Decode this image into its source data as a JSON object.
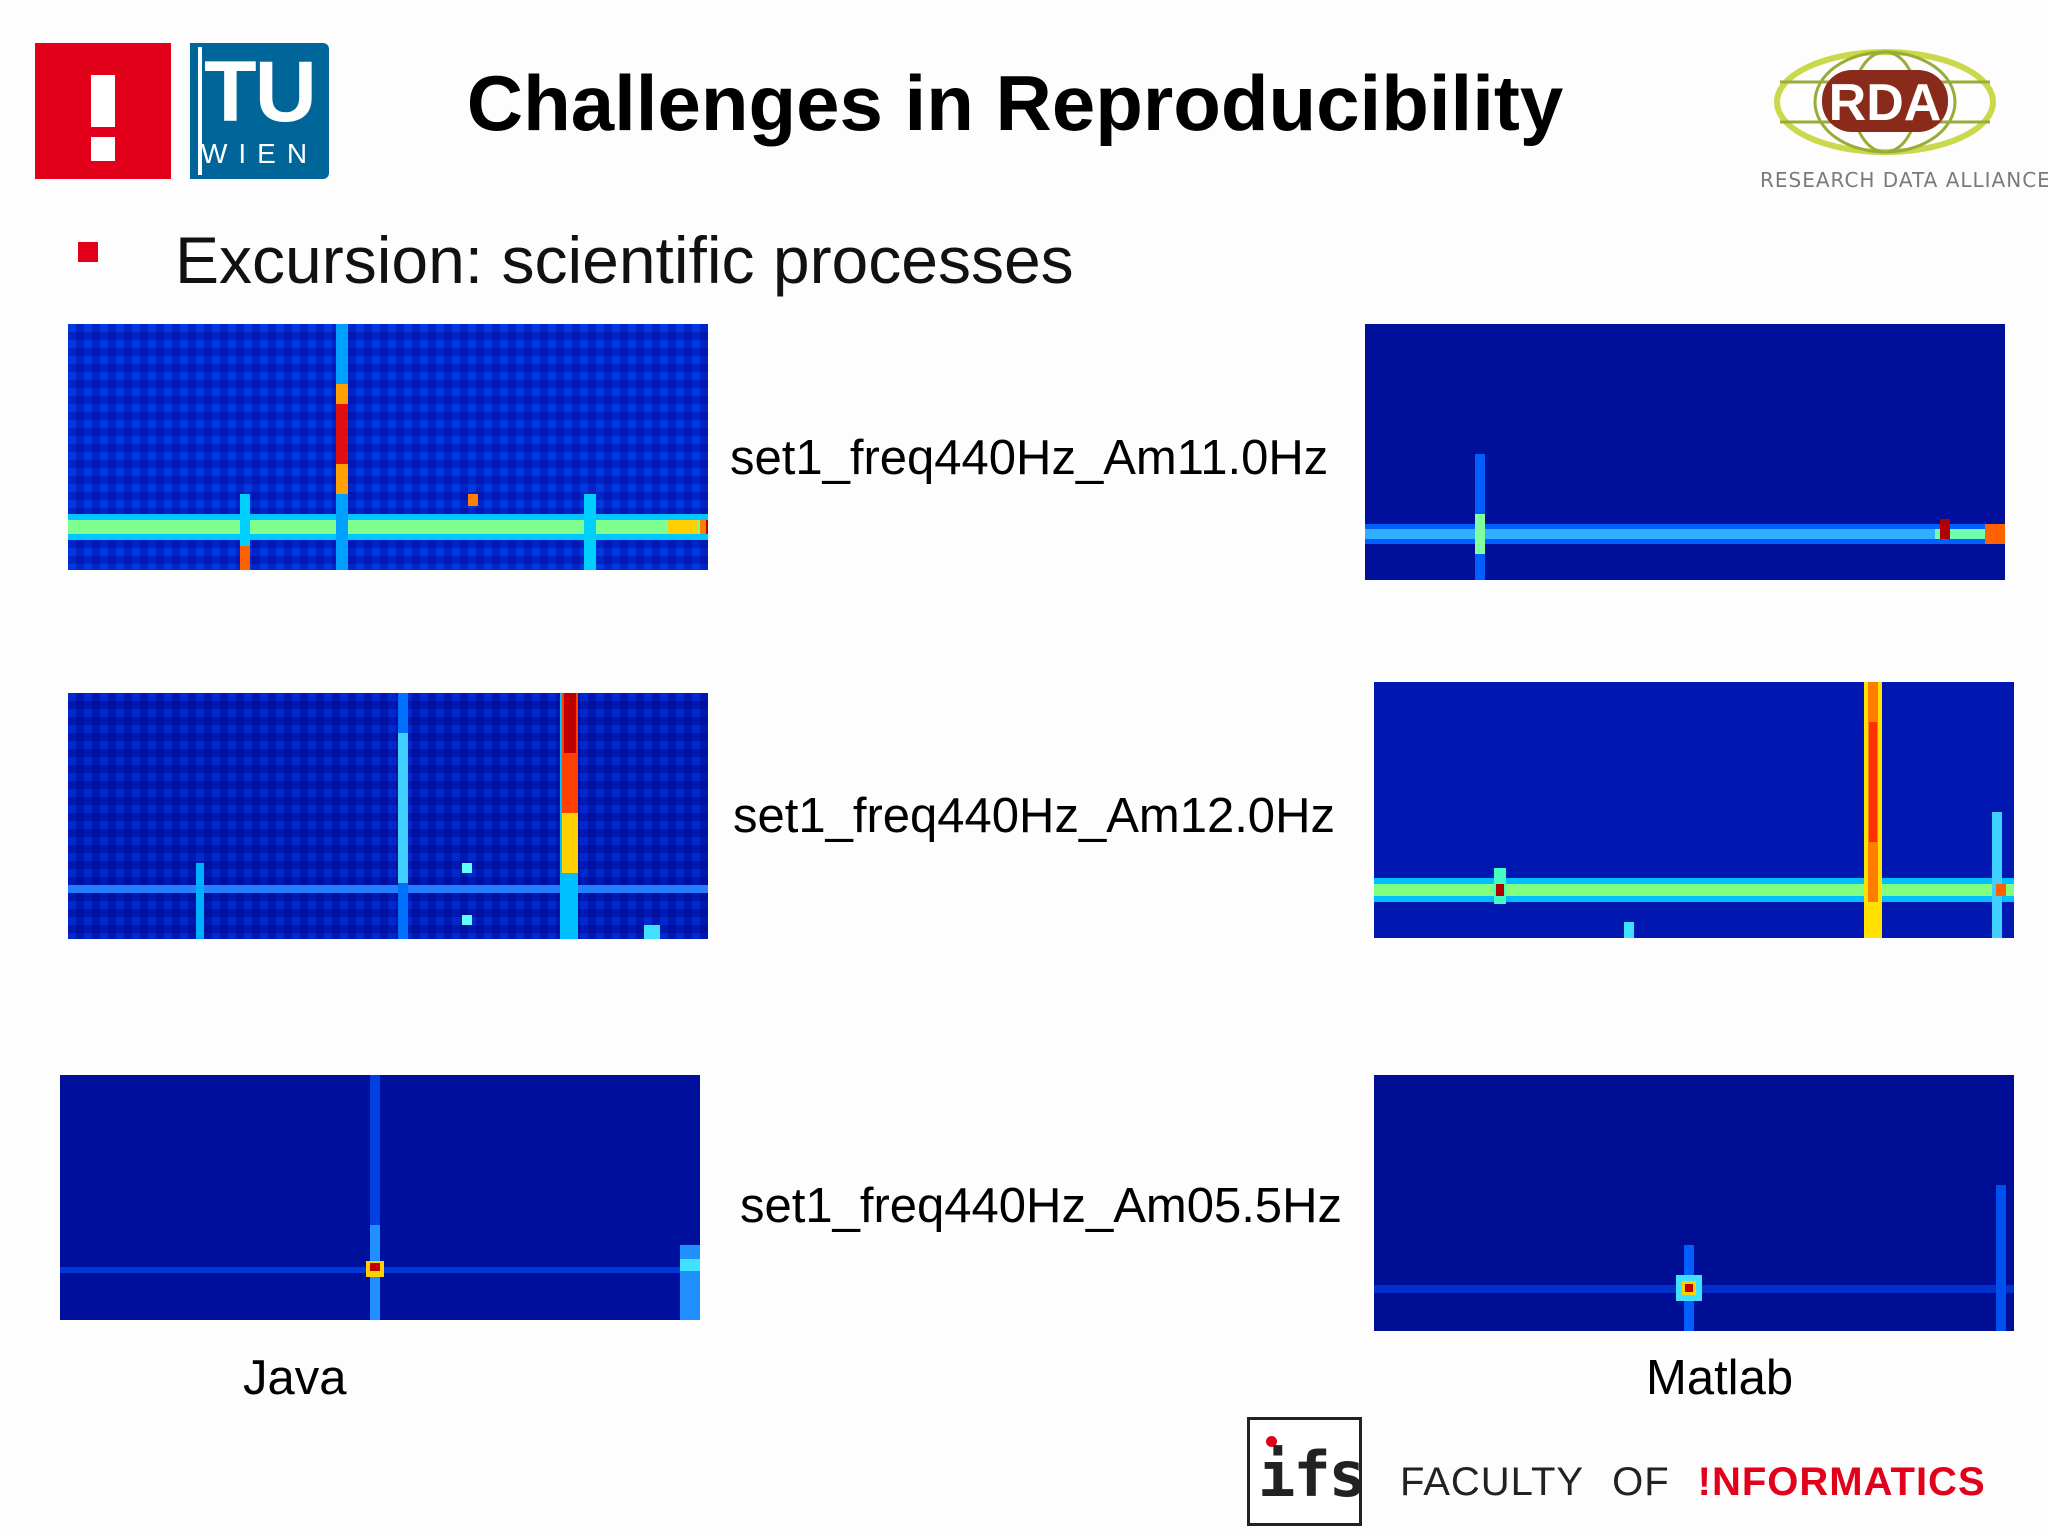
{
  "header": {
    "title": "Challenges in Reproducibility",
    "tu_logo": {
      "letters": "TU",
      "subtitle": "WIEN"
    },
    "rda_logo": {
      "mark": "RDA",
      "caption": "RESEARCH DATA ALLIANCE"
    }
  },
  "bullet": {
    "text": "Excursion: scientific processes"
  },
  "rows": [
    {
      "label": "set1_freq440Hz_Am11.0Hz"
    },
    {
      "label": "set1_freq440Hz_Am12.0Hz"
    },
    {
      "label": "set1_freq440Hz_Am05.5Hz"
    }
  ],
  "columns": {
    "left": "Java",
    "right": "Matlab"
  },
  "footer": {
    "ifs": "ifs",
    "faculty_word": "FACULTY",
    "of_word": "OF",
    "informatics_word": "!NFORMATICS"
  },
  "colors": {
    "brand_red": "#e2001a",
    "tu_blue": "#006699",
    "heatmap_background": "#00008f"
  }
}
